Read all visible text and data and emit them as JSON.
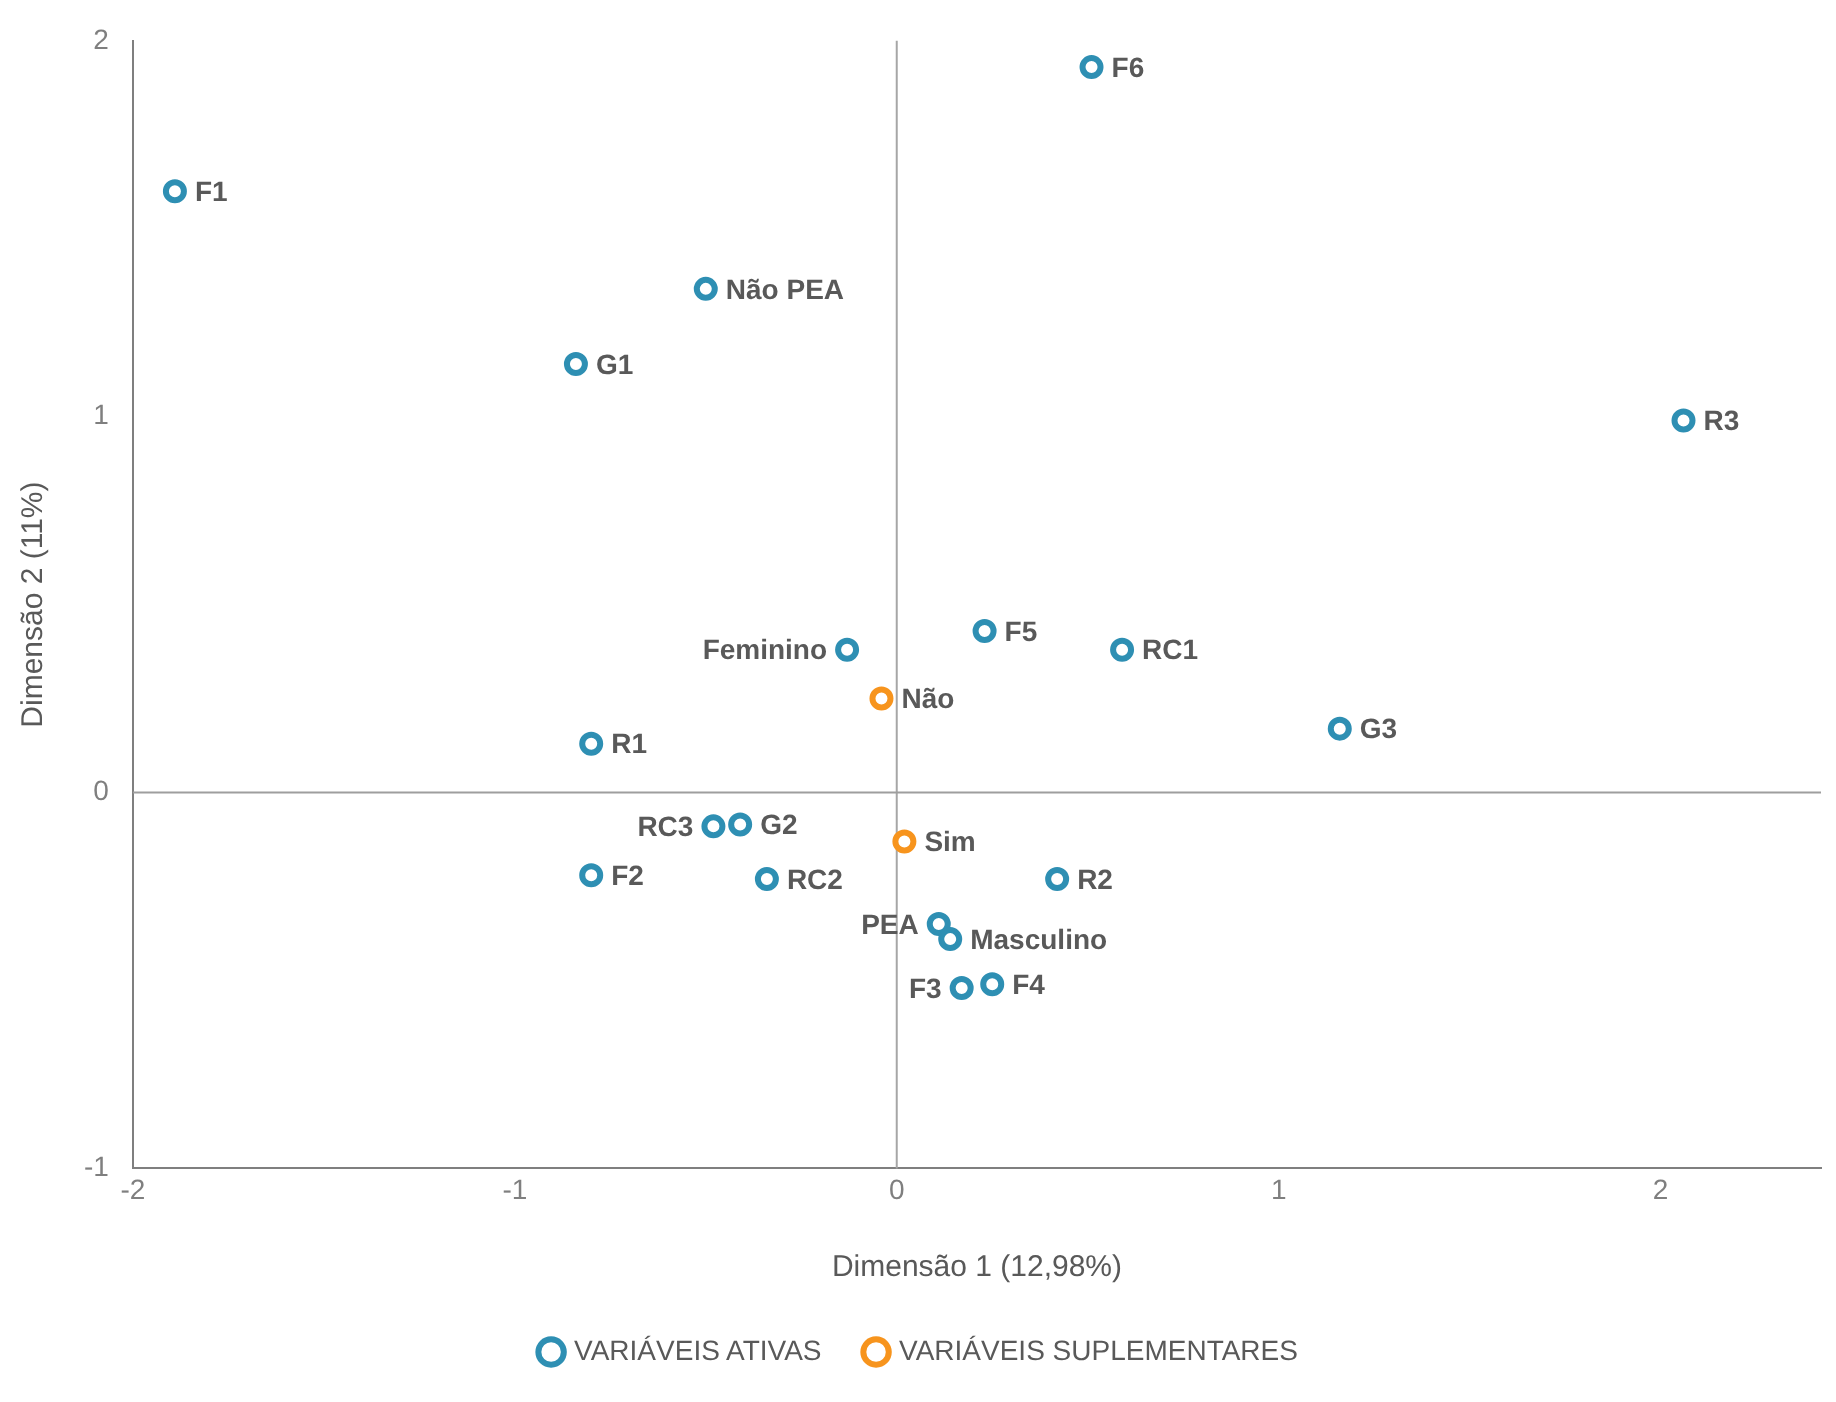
{
  "chart_data": {
    "type": "scatter",
    "xlabel": "Dimensão 1 (12,98%)",
    "ylabel": "Dimensão 2 (11%)",
    "xlim": [
      -2,
      2.42
    ],
    "ylim": [
      -1,
      2
    ],
    "xticks": [
      -2,
      -1,
      0,
      1,
      2
    ],
    "yticks": [
      -1,
      0,
      1,
      2
    ],
    "grid": false,
    "legend": "bottom",
    "marker": "circle",
    "ref_lines": [
      {
        "axis": "x",
        "value": 0,
        "color": "#a6a6a6"
      },
      {
        "axis": "y",
        "value": 0,
        "color": "#9e9e9e"
      }
    ],
    "series": [
      {
        "name": "VARIÁVEIS ATIVAS",
        "color": "#2e8fb3",
        "x": [
          -1.89,
          0.51,
          -0.5,
          -0.84,
          2.06,
          0.23,
          -0.13,
          0.59,
          1.16,
          -0.8,
          -0.48,
          -0.41,
          -0.8,
          -0.34,
          0.42,
          0.11,
          0.14,
          0.17,
          0.25
        ],
        "values": [
          1.6,
          1.93,
          1.34,
          1.14,
          0.99,
          0.43,
          0.38,
          0.38,
          0.17,
          0.13,
          -0.09,
          -0.085,
          -0.22,
          -0.23,
          -0.23,
          -0.35,
          -0.39,
          -0.52,
          -0.51
        ]
      },
      {
        "name": "VARIÁVEIS SUPLEMENTARES",
        "color": "#f7941d",
        "x": [
          -0.04,
          0.02
        ],
        "values": [
          0.25,
          -0.13
        ]
      }
    ],
    "annotations": [
      {
        "text": "F1",
        "x": -1.89,
        "y": 1.6
      },
      {
        "text": "F6",
        "x": 0.51,
        "y": 1.93
      },
      {
        "text": "Não PEA",
        "x": -0.5,
        "y": 1.34
      },
      {
        "text": "G1",
        "x": -0.84,
        "y": 1.14
      },
      {
        "text": "R3",
        "x": 2.06,
        "y": 0.99
      },
      {
        "text": "F5",
        "x": 0.23,
        "y": 0.43
      },
      {
        "text": "Feminino",
        "x": -0.13,
        "y": 0.38
      },
      {
        "text": "RC1",
        "x": 0.59,
        "y": 0.38
      },
      {
        "text": "G3",
        "x": 1.16,
        "y": 0.17
      },
      {
        "text": "R1",
        "x": -0.8,
        "y": 0.13
      },
      {
        "text": "RC3",
        "x": -0.48,
        "y": -0.09
      },
      {
        "text": "G2",
        "x": -0.41,
        "y": -0.085
      },
      {
        "text": "F2",
        "x": -0.8,
        "y": -0.22
      },
      {
        "text": "RC2",
        "x": -0.34,
        "y": -0.23
      },
      {
        "text": "R2",
        "x": 0.42,
        "y": -0.23
      },
      {
        "text": "PEA",
        "x": 0.11,
        "y": -0.35
      },
      {
        "text": "Masculino",
        "x": 0.14,
        "y": -0.39
      },
      {
        "text": "F3",
        "x": 0.17,
        "y": -0.52
      },
      {
        "text": "F4",
        "x": 0.25,
        "y": -0.51
      },
      {
        "text": "Não",
        "x": -0.04,
        "y": 0.25
      },
      {
        "text": "Sim",
        "x": 0.02,
        "y": -0.13
      }
    ]
  }
}
